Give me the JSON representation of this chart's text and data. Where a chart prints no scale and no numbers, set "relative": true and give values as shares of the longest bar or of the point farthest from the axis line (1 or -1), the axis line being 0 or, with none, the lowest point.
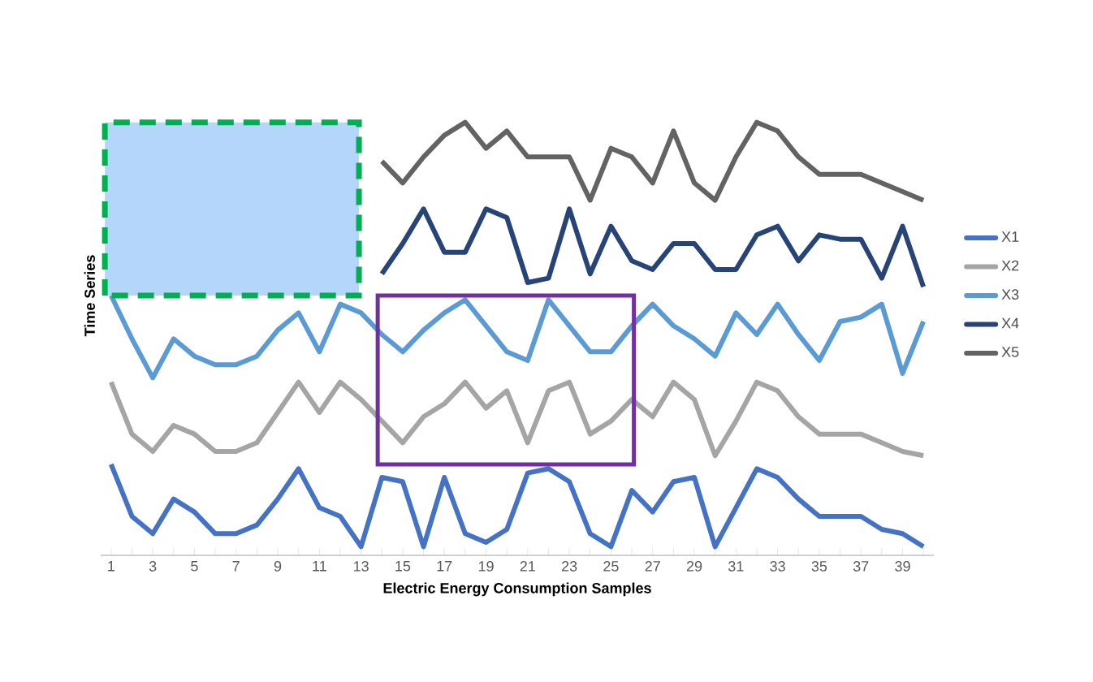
{
  "chart_data": {
    "type": "line",
    "relative": true,
    "xlabel": "Electric Energy Consumption Samples",
    "ylabel": "Time Series",
    "legend": "right",
    "categories": [
      "1",
      null,
      "3",
      null,
      "5",
      null,
      "7",
      null,
      "9",
      null,
      "11",
      null,
      "13",
      null,
      "15",
      null,
      "17",
      null,
      "19",
      null,
      "21",
      null,
      "23",
      null,
      "25",
      null,
      "27",
      null,
      "29",
      null,
      "31",
      null,
      "33",
      null,
      "35",
      null,
      "37",
      null,
      "39",
      null
    ],
    "series": [
      {
        "name": "X1",
        "color": "#4472c4",
        "values": [
          0.21,
          0.09,
          0.05,
          0.13,
          0.1,
          0.05,
          0.05,
          0.07,
          0.13,
          0.2,
          0.11,
          0.09,
          0.02,
          0.18,
          0.17,
          0.02,
          0.18,
          0.05,
          0.03,
          0.06,
          0.19,
          0.2,
          0.17,
          0.05,
          0.02,
          0.15,
          0.1,
          0.17,
          0.18,
          0.02,
          0.11,
          0.2,
          0.18,
          0.13,
          0.09,
          0.09,
          0.09,
          0.06,
          0.05,
          0.02
        ]
      },
      {
        "name": "X2",
        "color": "#a5a5a5",
        "values": [
          0.4,
          0.28,
          0.24,
          0.3,
          0.28,
          0.24,
          0.24,
          0.26,
          0.33,
          0.4,
          0.33,
          0.4,
          0.36,
          0.31,
          0.26,
          0.32,
          0.35,
          0.4,
          0.34,
          0.38,
          0.26,
          0.38,
          0.4,
          0.28,
          0.31,
          0.36,
          0.32,
          0.4,
          0.36,
          0.23,
          0.31,
          0.4,
          0.38,
          0.32,
          0.28,
          0.28,
          0.28,
          0.26,
          0.24,
          0.23
        ]
      },
      {
        "name": "X3",
        "color": "#5b9bd5",
        "values": [
          0.6,
          0.5,
          0.41,
          0.5,
          0.46,
          0.44,
          0.44,
          0.46,
          0.52,
          0.56,
          0.47,
          0.58,
          0.56,
          0.51,
          0.47,
          0.52,
          0.56,
          0.59,
          0.53,
          0.47,
          0.45,
          0.59,
          0.53,
          0.47,
          0.47,
          0.53,
          0.58,
          0.53,
          0.5,
          0.46,
          0.56,
          0.51,
          0.58,
          0.51,
          0.45,
          0.54,
          0.55,
          0.58,
          0.42,
          0.54
        ]
      },
      {
        "name": "X4",
        "color": "#264478",
        "values": [
          null,
          null,
          null,
          null,
          null,
          null,
          null,
          null,
          null,
          null,
          null,
          null,
          null,
          0.65,
          0.72,
          0.8,
          0.7,
          0.7,
          0.8,
          0.78,
          0.63,
          0.64,
          0.8,
          0.65,
          0.76,
          0.68,
          0.66,
          0.72,
          0.72,
          0.66,
          0.66,
          0.74,
          0.76,
          0.68,
          0.74,
          0.73,
          0.73,
          0.64,
          0.76,
          0.62
        ]
      },
      {
        "name": "X5",
        "color": "#636363",
        "values": [
          null,
          null,
          null,
          null,
          null,
          null,
          null,
          null,
          null,
          null,
          null,
          null,
          null,
          0.91,
          0.86,
          0.92,
          0.97,
          1.0,
          0.94,
          0.98,
          0.92,
          0.92,
          0.92,
          0.82,
          0.94,
          0.92,
          0.86,
          0.98,
          0.86,
          0.82,
          0.92,
          1.0,
          0.98,
          0.92,
          0.88,
          0.88,
          0.88,
          0.86,
          0.84,
          0.82
        ]
      }
    ]
  }
}
